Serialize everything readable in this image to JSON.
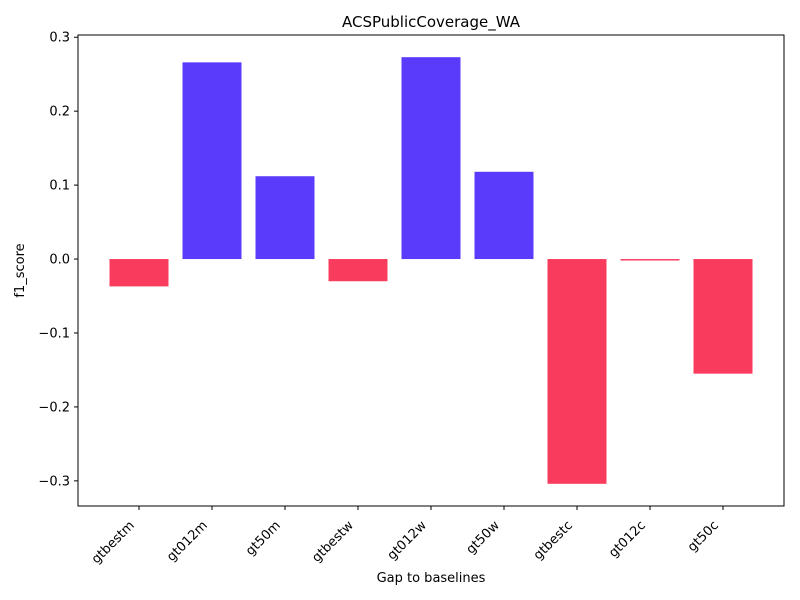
{
  "chart_data": {
    "type": "bar",
    "title": "ACSPublicCoverage_WA",
    "xlabel": "Gap to baselines",
    "ylabel": "f1_score",
    "categories": [
      "gtbestm",
      "gt012m",
      "gt50m",
      "gtbestw",
      "gt012w",
      "gt50w",
      "gtbestc",
      "gt012c",
      "gt50c"
    ],
    "values": [
      -0.037,
      0.266,
      0.112,
      -0.03,
      0.273,
      0.118,
      -0.304,
      -0.002,
      -0.155
    ],
    "ylim": [
      -0.334,
      0.303
    ],
    "yticks": [
      -0.3,
      -0.2,
      -0.1,
      0.0,
      0.1,
      0.2,
      0.3
    ],
    "ytick_labels": [
      "−0.3",
      "−0.2",
      "−0.1",
      "0.0",
      "0.1",
      "0.2",
      "0.3"
    ],
    "colors": {
      "positive": "#5b3bfb",
      "negative": "#f93c5e"
    },
    "grid": false,
    "legend": "none"
  }
}
